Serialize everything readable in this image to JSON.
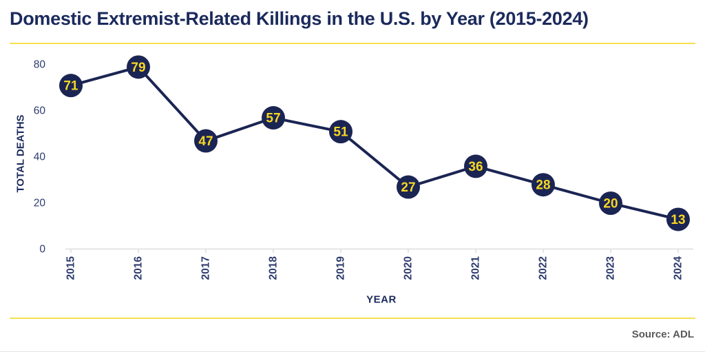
{
  "title": "Domestic Extremist-Related Killings in the U.S. by Year (2015-2024)",
  "source": "Source: ADL",
  "colors": {
    "title_navy": "#1B2A5C",
    "chart_navy": "#1B2553",
    "tick_navy": "#2D3B6E",
    "label_yellow": "#F8D723",
    "divider_yellow": "#F6E04E",
    "axis_gray": "#DCDCDC",
    "source_gray": "#58595B"
  },
  "chart_data": {
    "type": "line",
    "title": "Domestic Extremist-Related Killings in the U.S. by Year (2015-2024)",
    "x": [
      "2015",
      "2016",
      "2017",
      "2018",
      "2019",
      "2020",
      "2021",
      "2022",
      "2023",
      "2024"
    ],
    "values": [
      71,
      79,
      47,
      57,
      51,
      27,
      36,
      28,
      20,
      13
    ],
    "xlabel": "YEAR",
    "ylabel": "TOTAL DEATHS",
    "ylim": [
      0,
      80
    ],
    "yticks": [
      0,
      20,
      40,
      60,
      80
    ],
    "grid": false,
    "legend": false,
    "point_labels": true,
    "annotation": "Source: ADL"
  }
}
